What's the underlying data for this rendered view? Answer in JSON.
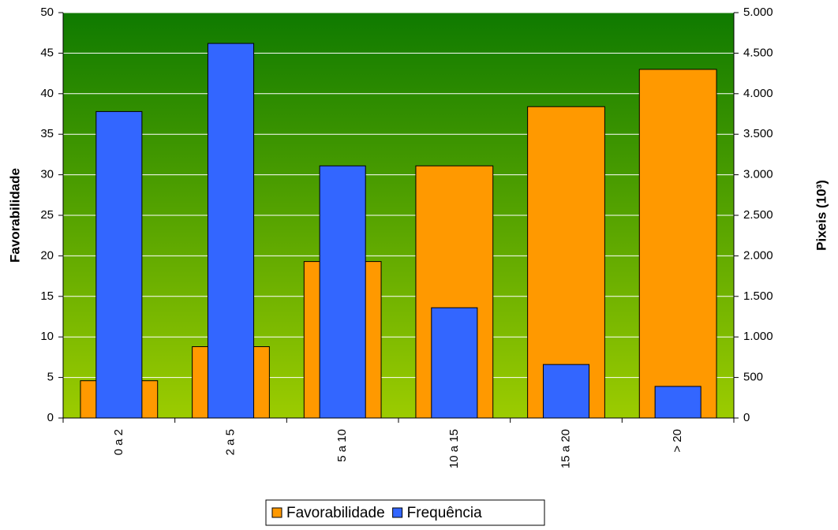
{
  "chart_data": {
    "type": "bar",
    "categories": [
      "0 a 2",
      "2 a 5",
      "5 a 10",
      "10 a 15",
      "15 a 20",
      "> 20"
    ],
    "y_label": "Favorabilidade",
    "y2_label": "Pixeis (10³)",
    "series": [
      {
        "name": "Favorabilidade",
        "color": "#ff9900",
        "values": [
          4.6,
          8.8,
          19.3,
          31.1,
          38.4,
          43.0
        ]
      },
      {
        "name": "Frequência",
        "color": "#3366ff",
        "axis": "y2",
        "values": [
          3780,
          4620,
          3110,
          1360,
          660,
          390
        ]
      }
    ],
    "ylim": [
      0,
      50
    ],
    "yticks": [
      0,
      5,
      10,
      15,
      20,
      25,
      30,
      35,
      40,
      45,
      50
    ],
    "y2lim": [
      0,
      5000
    ],
    "y2ticks": [
      0,
      500,
      {
        "value": 1000,
        "label": "1.000"
      },
      {
        "value": 1500,
        "label": "1.500"
      },
      {
        "value": 2000,
        "label": "2.000"
      },
      {
        "value": 2500,
        "label": "2.500"
      },
      {
        "value": 3000,
        "label": "3.000"
      },
      {
        "value": 3500,
        "label": "3.500"
      },
      {
        "value": 4000,
        "label": "4.000"
      },
      {
        "value": 4500,
        "label": "4.500"
      },
      {
        "value": 5000,
        "label": "5.000"
      }
    ],
    "grid": true,
    "legend": "bottom"
  }
}
